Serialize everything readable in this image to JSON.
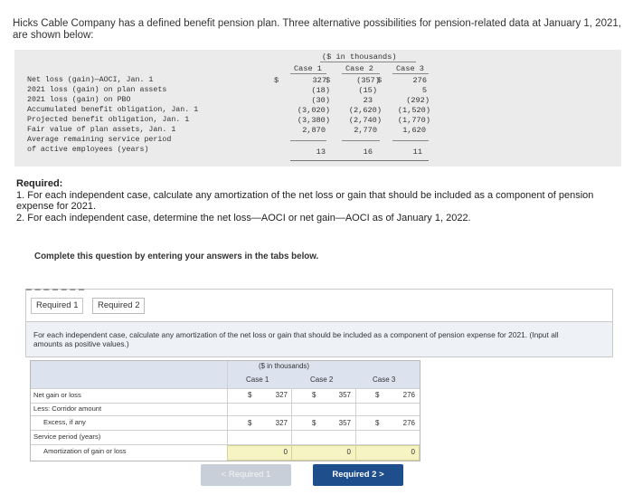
{
  "intro": "Hicks Cable Company has a defined benefit pension plan. Three alternative possibilities for pension-related data at January 1, 2021, are shown below:",
  "data_table": {
    "unit_header": "($ in thousands)",
    "columns": [
      "Case 1",
      "Case 2",
      "Case 3"
    ],
    "rows": [
      {
        "label": "Net loss (gain)—AOCI, Jan. 1",
        "prefix": [
          "$",
          "$",
          "$"
        ],
        "values": [
          "327",
          "(357)",
          "276"
        ]
      },
      {
        "label": "2021 loss (gain) on plan assets",
        "values": [
          "(18)",
          "(15)",
          "5"
        ]
      },
      {
        "label": "2021 loss (gain) on PBO",
        "values": [
          "(30)",
          "23",
          "(292)"
        ]
      },
      {
        "label": "Accumulated benefit obligation, Jan. 1",
        "values": [
          "(3,020)",
          "(2,620)",
          "(1,520)"
        ]
      },
      {
        "label": "Projected benefit obligation, Jan. 1",
        "values": [
          "(3,380)",
          "(2,740)",
          "(1,770)"
        ]
      },
      {
        "label": "Fair value of plan assets, Jan. 1",
        "values": [
          "2,870",
          "2,770",
          "1,620"
        ]
      },
      {
        "label": "Average remaining service period",
        "values": [
          "",
          "",
          ""
        ]
      },
      {
        "label": "of active employees (years)",
        "values": [
          "13",
          "16",
          "11"
        ]
      }
    ]
  },
  "required": {
    "heading": "Required:",
    "item1": "1. For each independent case, calculate any amortization of the net loss or gain that should be included as a component of pension expense for 2021.",
    "item2": "2. For each independent case, determine the net loss—AOCI or net gain—AOCI as of January 1, 2022."
  },
  "complete_text": "Complete this question by entering your answers in the tabs below.",
  "tabs": {
    "tab1": "Required 1",
    "tab2": "Required 2"
  },
  "instruction": "For each independent case, calculate any amortization of the net loss or gain that should be included as a component of pension expense for 2021. (Input all amounts as positive values.)",
  "answer_table": {
    "unit_header": "($ in thousands)",
    "columns": [
      "Case 1",
      "Case 2",
      "Case 3"
    ],
    "rows": [
      {
        "label": "Net gain or loss",
        "dollar": "$",
        "values": [
          "327",
          "357",
          "276"
        ]
      },
      {
        "label": "Less: Corridor amount",
        "values": [
          "",
          "",
          ""
        ]
      },
      {
        "label": "Excess, if any",
        "dollar": "$",
        "values": [
          "327",
          "357",
          "276"
        ]
      },
      {
        "label": "Service period (years)",
        "values": [
          "",
          "",
          ""
        ]
      },
      {
        "label": "Amortization of gain or loss",
        "values": [
          "0",
          "0",
          "0"
        ]
      }
    ]
  },
  "nav": {
    "prev": "< Required 1",
    "next": "Required 2 >"
  },
  "colors": {
    "accent": "#1f4e8c",
    "input_yellow": "#f7f4c4",
    "header_blue": "#dce3ef"
  }
}
